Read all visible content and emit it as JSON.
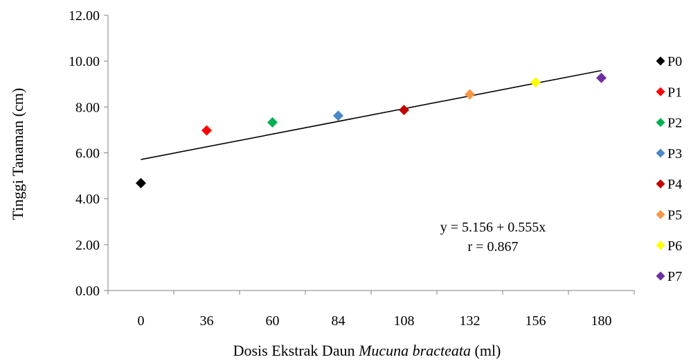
{
  "chart_data": {
    "type": "scatter",
    "categories": [
      "0",
      "36",
      "60",
      "84",
      "108",
      "132",
      "156",
      "180"
    ],
    "ylim": [
      0,
      12
    ],
    "ytick_labels": [
      "0.00",
      "2.00",
      "4.00",
      "6.00",
      "8.00",
      "10.00",
      "12.00"
    ],
    "ylabel": "Tinggi Tanaman (cm)",
    "xlabel": {
      "prefix": "Dosis Ekstrak Daun ",
      "italic": "Mucuna bracteata",
      "suffix": " (ml)"
    },
    "grid": false,
    "legend_position": "right",
    "series": [
      {
        "name": "P0",
        "category_index": 0,
        "value": 4.68,
        "color": "#000000"
      },
      {
        "name": "P1",
        "category_index": 1,
        "value": 6.98,
        "color": "#ff0000"
      },
      {
        "name": "P2",
        "category_index": 2,
        "value": 7.33,
        "color": "#00b050"
      },
      {
        "name": "P3",
        "category_index": 3,
        "value": 7.62,
        "color": "#4a86c8"
      },
      {
        "name": "P4",
        "category_index": 4,
        "value": 7.87,
        "color": "#c00000"
      },
      {
        "name": "P5",
        "category_index": 5,
        "value": 8.55,
        "color": "#f79646"
      },
      {
        "name": "P6",
        "category_index": 6,
        "value": 9.07,
        "color": "#ffff00"
      },
      {
        "name": "P7",
        "category_index": 7,
        "value": 9.27,
        "color": "#7030a0"
      }
    ],
    "trendline": {
      "start_value": 5.71,
      "end_value": 9.59,
      "color": "#000000",
      "equation": "y = 5.156 + 0.555x",
      "r_text": "r = 0.867"
    }
  }
}
